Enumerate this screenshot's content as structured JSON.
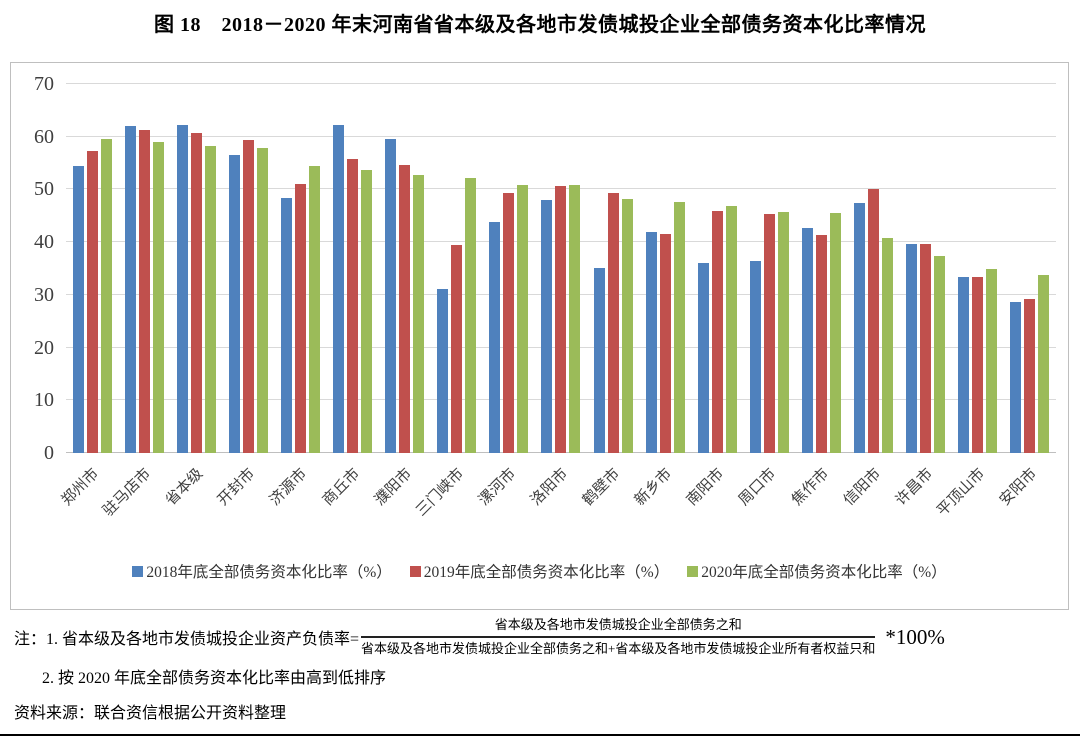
{
  "title": "图 18　2018－2020 年末河南省省本级及各地市发债城投企业全部债务资本化比率情况",
  "chart_data": {
    "type": "bar",
    "categories": [
      "郑州市",
      "驻马店市",
      "省本级",
      "开封市",
      "济源市",
      "商丘市",
      "濮阳市",
      "三门峡市",
      "漯河市",
      "洛阳市",
      "鹤壁市",
      "新乡市",
      "南阳市",
      "周口市",
      "焦作市",
      "信阳市",
      "许昌市",
      "平顶山市",
      "安阳市"
    ],
    "series": [
      {
        "name": "2018年底全部债务资本化比率（%）",
        "color": "#4F81BD",
        "values": [
          54.5,
          62.1,
          62.2,
          56.6,
          48.4,
          62.3,
          59.5,
          31.2,
          43.9,
          48.0,
          35.1,
          42.0,
          36.0,
          36.5,
          42.6,
          47.4,
          39.6,
          33.4,
          28.7
        ]
      },
      {
        "name": "2019年底全部债务资本化比率（%）",
        "color": "#C0504D",
        "values": [
          57.3,
          61.3,
          60.8,
          59.4,
          51.1,
          55.8,
          54.6,
          39.5,
          49.4,
          50.6,
          49.4,
          41.5,
          45.9,
          45.4,
          41.3,
          50.0,
          39.6,
          33.4,
          29.2
        ]
      },
      {
        "name": "2020年底全部债务资本化比率（%）",
        "color": "#9BBB59",
        "values": [
          59.6,
          59.0,
          58.2,
          57.8,
          54.4,
          53.6,
          52.8,
          52.1,
          50.8,
          50.8,
          48.1,
          47.6,
          46.9,
          45.8,
          45.5,
          40.8,
          37.4,
          35.0,
          33.7
        ]
      }
    ],
    "ylim": [
      0,
      70
    ],
    "yticks": [
      0,
      10,
      20,
      30,
      40,
      50,
      60,
      70
    ],
    "grid": true,
    "legend_position": "bottom",
    "gridline_color": "#D9D9D9"
  },
  "notes": {
    "note1_prefix": "注：1. 省本级及各地市发债城投企业资产负债率=",
    "fraction_numerator": "省本级及各地市发债城投企业全部债务之和",
    "fraction_denominator": "省本级及各地市发债城投企业全部债务之和+省本级及各地市发债城投企业所有者权益只和",
    "note1_suffix": "*100%",
    "note2": "2. 按 2020 年底全部债务资本化比率由高到低排序",
    "source": "资料来源：联合资信根据公开资料整理"
  }
}
